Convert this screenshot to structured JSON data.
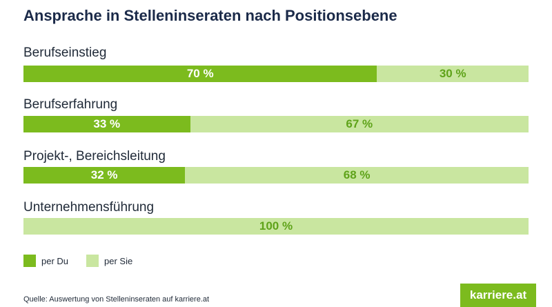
{
  "chart_data": {
    "type": "bar",
    "stacked": true,
    "orientation": "horizontal",
    "title": "Ansprache in Stelleninseraten nach Positionsebene",
    "categories": [
      "Berufseinstieg",
      "Berufserfahrung",
      "Projekt-, Bereichsleitung",
      "Unternehmensführung"
    ],
    "series": [
      {
        "name": "per Du",
        "values": [
          70,
          33,
          32,
          0
        ],
        "labels": [
          "70 %",
          "33 %",
          "32 %",
          ""
        ],
        "color": "#7cbb1e"
      },
      {
        "name": "per Sie",
        "values": [
          30,
          67,
          68,
          100
        ],
        "labels": [
          "30 %",
          "67 %",
          "68 %",
          "100 %"
        ],
        "color": "#c9e6a0"
      }
    ],
    "xlim": [
      0,
      100
    ],
    "unit": "%",
    "legend": "bottom-left"
  },
  "source": "Quelle: Auswertung von Stelleninseraten auf karriere.at",
  "logo": {
    "text": "karriere.at",
    "color": "#7cbb1e"
  }
}
